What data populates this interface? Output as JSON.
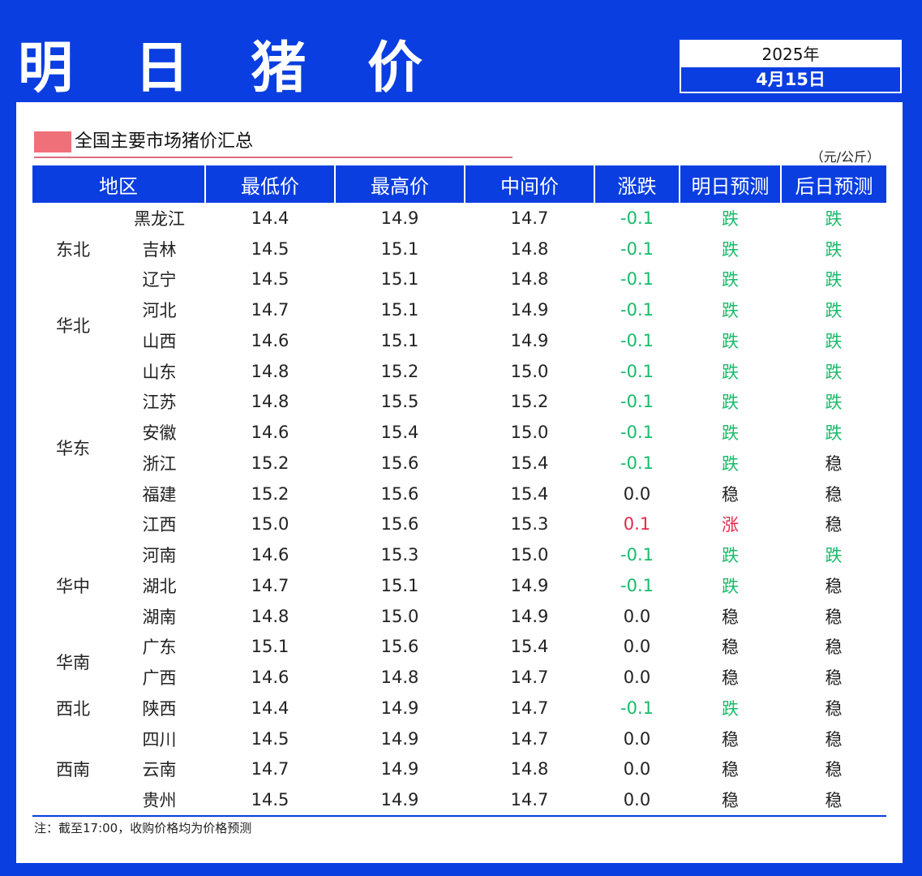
{
  "header": {
    "title": "明 日 猪 价",
    "year": "2025年",
    "date": "4月15日"
  },
  "section": {
    "title": "全国主要市场猪价汇总",
    "unit": "（元/公斤）"
  },
  "table": {
    "columns": [
      "地区",
      "最低价",
      "最高价",
      "中间价",
      "涨跌",
      "明日预测",
      "后日预测"
    ],
    "groups": [
      {
        "name": "东北",
        "rows": [
          {
            "prov": "黑龙江",
            "low": "14.4",
            "high": "14.9",
            "mid": "14.7",
            "chg": "-0.1",
            "tmr": "跌",
            "dat": "跌"
          },
          {
            "prov": "吉林",
            "low": "14.5",
            "high": "15.1",
            "mid": "14.8",
            "chg": "-0.1",
            "tmr": "跌",
            "dat": "跌"
          },
          {
            "prov": "辽宁",
            "low": "14.5",
            "high": "15.1",
            "mid": "14.8",
            "chg": "-0.1",
            "tmr": "跌",
            "dat": "跌"
          }
        ]
      },
      {
        "name": "华北",
        "rows": [
          {
            "prov": "河北",
            "low": "14.7",
            "high": "15.1",
            "mid": "14.9",
            "chg": "-0.1",
            "tmr": "跌",
            "dat": "跌"
          },
          {
            "prov": "山西",
            "low": "14.6",
            "high": "15.1",
            "mid": "14.9",
            "chg": "-0.1",
            "tmr": "跌",
            "dat": "跌"
          }
        ]
      },
      {
        "name": "华东",
        "rows": [
          {
            "prov": "山东",
            "low": "14.8",
            "high": "15.2",
            "mid": "15.0",
            "chg": "-0.1",
            "tmr": "跌",
            "dat": "跌"
          },
          {
            "prov": "江苏",
            "low": "14.8",
            "high": "15.5",
            "mid": "15.2",
            "chg": "-0.1",
            "tmr": "跌",
            "dat": "跌"
          },
          {
            "prov": "安徽",
            "low": "14.6",
            "high": "15.4",
            "mid": "15.0",
            "chg": "-0.1",
            "tmr": "跌",
            "dat": "跌"
          },
          {
            "prov": "浙江",
            "low": "15.2",
            "high": "15.6",
            "mid": "15.4",
            "chg": "-0.1",
            "tmr": "跌",
            "dat": "稳"
          },
          {
            "prov": "福建",
            "low": "15.2",
            "high": "15.6",
            "mid": "15.4",
            "chg": "0.0",
            "tmr": "稳",
            "dat": "稳"
          },
          {
            "prov": "江西",
            "low": "15.0",
            "high": "15.6",
            "mid": "15.3",
            "chg": "0.1",
            "tmr": "涨",
            "dat": "稳"
          }
        ]
      },
      {
        "name": "华中",
        "rows": [
          {
            "prov": "河南",
            "low": "14.6",
            "high": "15.3",
            "mid": "15.0",
            "chg": "-0.1",
            "tmr": "跌",
            "dat": "跌"
          },
          {
            "prov": "湖北",
            "low": "14.7",
            "high": "15.1",
            "mid": "14.9",
            "chg": "-0.1",
            "tmr": "跌",
            "dat": "稳"
          },
          {
            "prov": "湖南",
            "low": "14.8",
            "high": "15.0",
            "mid": "14.9",
            "chg": "0.0",
            "tmr": "稳",
            "dat": "稳"
          }
        ]
      },
      {
        "name": "华南",
        "rows": [
          {
            "prov": "广东",
            "low": "15.1",
            "high": "15.6",
            "mid": "15.4",
            "chg": "0.0",
            "tmr": "稳",
            "dat": "稳"
          },
          {
            "prov": "广西",
            "low": "14.6",
            "high": "14.8",
            "mid": "14.7",
            "chg": "0.0",
            "tmr": "稳",
            "dat": "稳"
          }
        ]
      },
      {
        "name": "西北",
        "rows": [
          {
            "prov": "陕西",
            "low": "14.4",
            "high": "14.9",
            "mid": "14.7",
            "chg": "-0.1",
            "tmr": "跌",
            "dat": "稳"
          }
        ]
      },
      {
        "name": "西南",
        "rows": [
          {
            "prov": "四川",
            "low": "14.5",
            "high": "14.9",
            "mid": "14.7",
            "chg": "0.0",
            "tmr": "稳",
            "dat": "稳"
          },
          {
            "prov": "云南",
            "low": "14.7",
            "high": "14.9",
            "mid": "14.8",
            "chg": "0.0",
            "tmr": "稳",
            "dat": "稳"
          },
          {
            "prov": "贵州",
            "low": "14.5",
            "high": "14.9",
            "mid": "14.7",
            "chg": "0.0",
            "tmr": "稳",
            "dat": "稳"
          }
        ]
      }
    ]
  },
  "note": "注：截至17:00，收购价格均为价格预测",
  "colors": {
    "brand_blue": "#0a3ee0",
    "down_green": "#1aba6a",
    "up_red": "#e22a4a",
    "section_marker": "#f0707a"
  }
}
